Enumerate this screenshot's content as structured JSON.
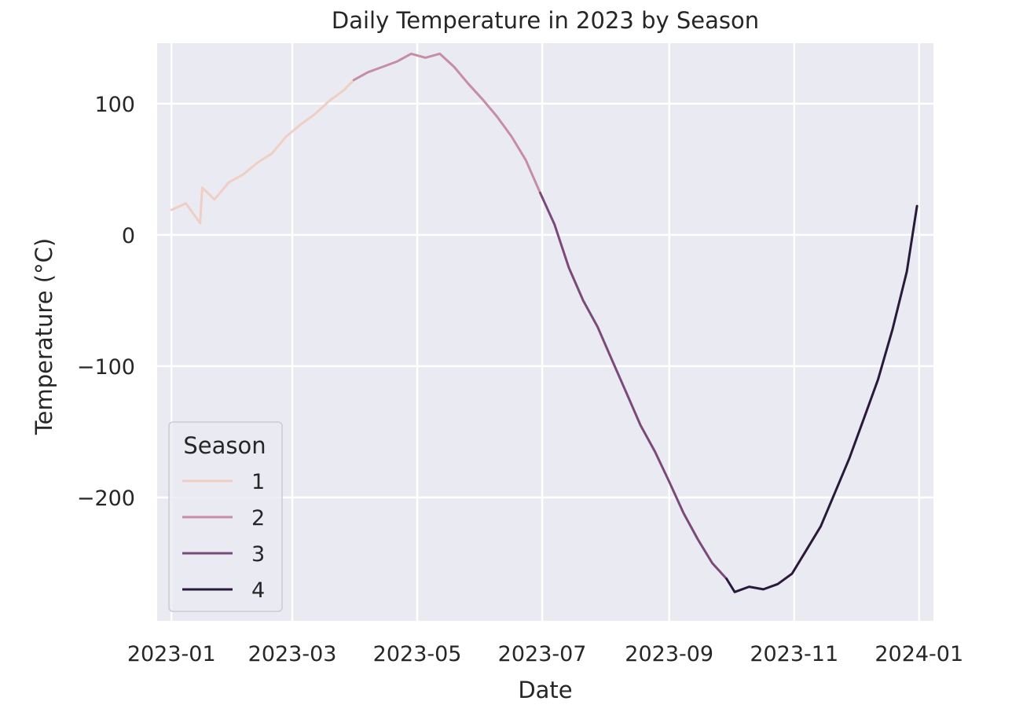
{
  "chart_data": {
    "type": "line",
    "title": "Daily Temperature in 2023 by Season",
    "xlabel": "Date",
    "ylabel": "Temperature (°C)",
    "x_range": [
      "2022-12-25",
      "2024-01-08"
    ],
    "ylim": [
      -294,
      146
    ],
    "x_ticks": [
      "2023-01",
      "2023-03",
      "2023-05",
      "2023-07",
      "2023-09",
      "2023-11",
      "2024-01"
    ],
    "y_ticks": [
      100,
      0,
      -100,
      -200
    ],
    "y_tick_labels": [
      "100",
      "0",
      "−100",
      "−200"
    ],
    "grid": true,
    "legend": {
      "title": "Season",
      "placement": "lower-left",
      "entries": [
        "1",
        "2",
        "3",
        "4"
      ]
    },
    "series": [
      {
        "name": "1",
        "color": "#efcfc4",
        "points": [
          [
            "2023-01-01",
            19
          ],
          [
            "2023-01-08",
            24
          ],
          [
            "2023-01-15",
            9
          ],
          [
            "2023-01-16",
            36
          ],
          [
            "2023-01-22",
            27
          ],
          [
            "2023-01-29",
            40
          ],
          [
            "2023-02-05",
            46
          ],
          [
            "2023-02-12",
            55
          ],
          [
            "2023-02-19",
            62
          ],
          [
            "2023-02-26",
            75
          ],
          [
            "2023-03-05",
            84
          ],
          [
            "2023-03-12",
            92
          ],
          [
            "2023-03-19",
            102
          ],
          [
            "2023-03-26",
            110
          ],
          [
            "2023-03-31",
            118
          ]
        ]
      },
      {
        "name": "2",
        "color": "#c58ea4",
        "points": [
          [
            "2023-03-31",
            118
          ],
          [
            "2023-04-07",
            124
          ],
          [
            "2023-04-14",
            128
          ],
          [
            "2023-04-21",
            132
          ],
          [
            "2023-04-28",
            138
          ],
          [
            "2023-05-05",
            135
          ],
          [
            "2023-05-12",
            138
          ],
          [
            "2023-05-19",
            128
          ],
          [
            "2023-05-26",
            115
          ],
          [
            "2023-06-02",
            103
          ],
          [
            "2023-06-09",
            90
          ],
          [
            "2023-06-16",
            75
          ],
          [
            "2023-06-23",
            57
          ],
          [
            "2023-06-30",
            32
          ]
        ]
      },
      {
        "name": "3",
        "color": "#7a4a79",
        "points": [
          [
            "2023-06-30",
            32
          ],
          [
            "2023-07-07",
            8
          ],
          [
            "2023-07-14",
            -25
          ],
          [
            "2023-07-21",
            -50
          ],
          [
            "2023-07-28",
            -70
          ],
          [
            "2023-08-04",
            -95
          ],
          [
            "2023-08-11",
            -120
          ],
          [
            "2023-08-18",
            -145
          ],
          [
            "2023-08-25",
            -165
          ],
          [
            "2023-09-01",
            -188
          ],
          [
            "2023-09-08",
            -212
          ],
          [
            "2023-09-15",
            -232
          ],
          [
            "2023-09-22",
            -250
          ],
          [
            "2023-09-29",
            -262
          ]
        ]
      },
      {
        "name": "4",
        "color": "#2a1a3a",
        "points": [
          [
            "2023-09-29",
            -262
          ],
          [
            "2023-10-03",
            -272
          ],
          [
            "2023-10-10",
            -268
          ],
          [
            "2023-10-17",
            -270
          ],
          [
            "2023-10-24",
            -266
          ],
          [
            "2023-10-31",
            -258
          ],
          [
            "2023-11-07",
            -240
          ],
          [
            "2023-11-14",
            -222
          ],
          [
            "2023-11-21",
            -196
          ],
          [
            "2023-11-28",
            -170
          ],
          [
            "2023-12-05",
            -140
          ],
          [
            "2023-12-12",
            -110
          ],
          [
            "2023-12-19",
            -72
          ],
          [
            "2023-12-26",
            -28
          ],
          [
            "2023-12-31",
            22
          ]
        ]
      }
    ]
  }
}
